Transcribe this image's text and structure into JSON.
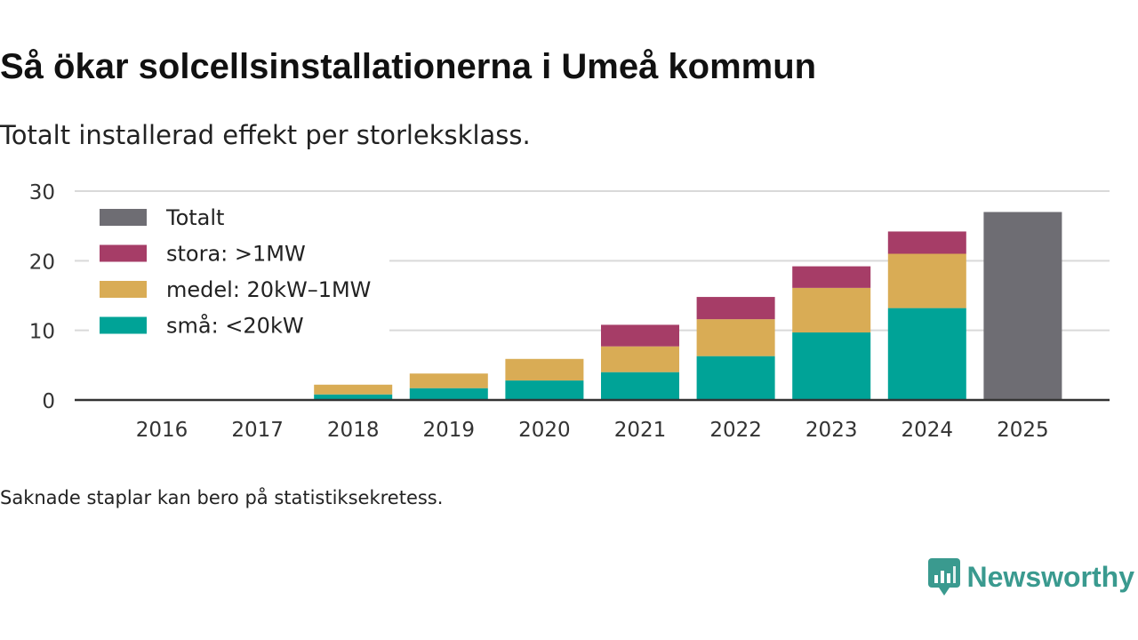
{
  "header": {
    "title": "Så ökar solcellsinstallationerna i Umeå kommun",
    "subtitle": "Totalt installerad effekt per storleksklass."
  },
  "footer": {
    "note": "Saknade staplar kan bero på statistiksekretess.",
    "brand": "Newsworthy",
    "brand_icon": "bar-chart-speech-bubble-icon"
  },
  "colors": {
    "totalt": "#6e6d73",
    "stora": "#a63d67",
    "medel": "#d9ac55",
    "sma": "#00a397",
    "grid": "#d9d9d9",
    "axis": "#333333",
    "brand": "#3a9a8f"
  },
  "chart_data": {
    "type": "bar",
    "stacked": true,
    "title": "Så ökar solcellsinstallationerna i Umeå kommun",
    "subtitle": "Totalt installerad effekt per storleksklass.",
    "xlabel": "",
    "ylabel": "",
    "ylim": [
      0,
      30
    ],
    "yticks": [
      0,
      10,
      20,
      30
    ],
    "grid": true,
    "legend_position": "top-left",
    "categories": [
      "2016",
      "2017",
      "2018",
      "2019",
      "2020",
      "2021",
      "2022",
      "2023",
      "2024",
      "2025"
    ],
    "series": [
      {
        "name": "små: <20kW",
        "key": "sma",
        "values": [
          0,
          0,
          0.8,
          1.7,
          2.8,
          4.0,
          6.3,
          9.7,
          13.2,
          0
        ]
      },
      {
        "name": "medel: 20kW–1MW",
        "key": "medel",
        "values": [
          0,
          0,
          1.4,
          2.1,
          3.1,
          3.7,
          5.3,
          6.4,
          7.8,
          0
        ]
      },
      {
        "name": "stora: >1MW",
        "key": "stora",
        "values": [
          0,
          0,
          0,
          0,
          0,
          3.1,
          3.2,
          3.1,
          3.2,
          0
        ]
      },
      {
        "name": "Totalt",
        "key": "totalt",
        "values": [
          0,
          0,
          0,
          0,
          0,
          0,
          0,
          0,
          0,
          27.0
        ]
      }
    ],
    "legend_order": [
      "Totalt",
      "stora: >1MW",
      "medel: 20kW–1MW",
      "små: <20kW"
    ]
  }
}
